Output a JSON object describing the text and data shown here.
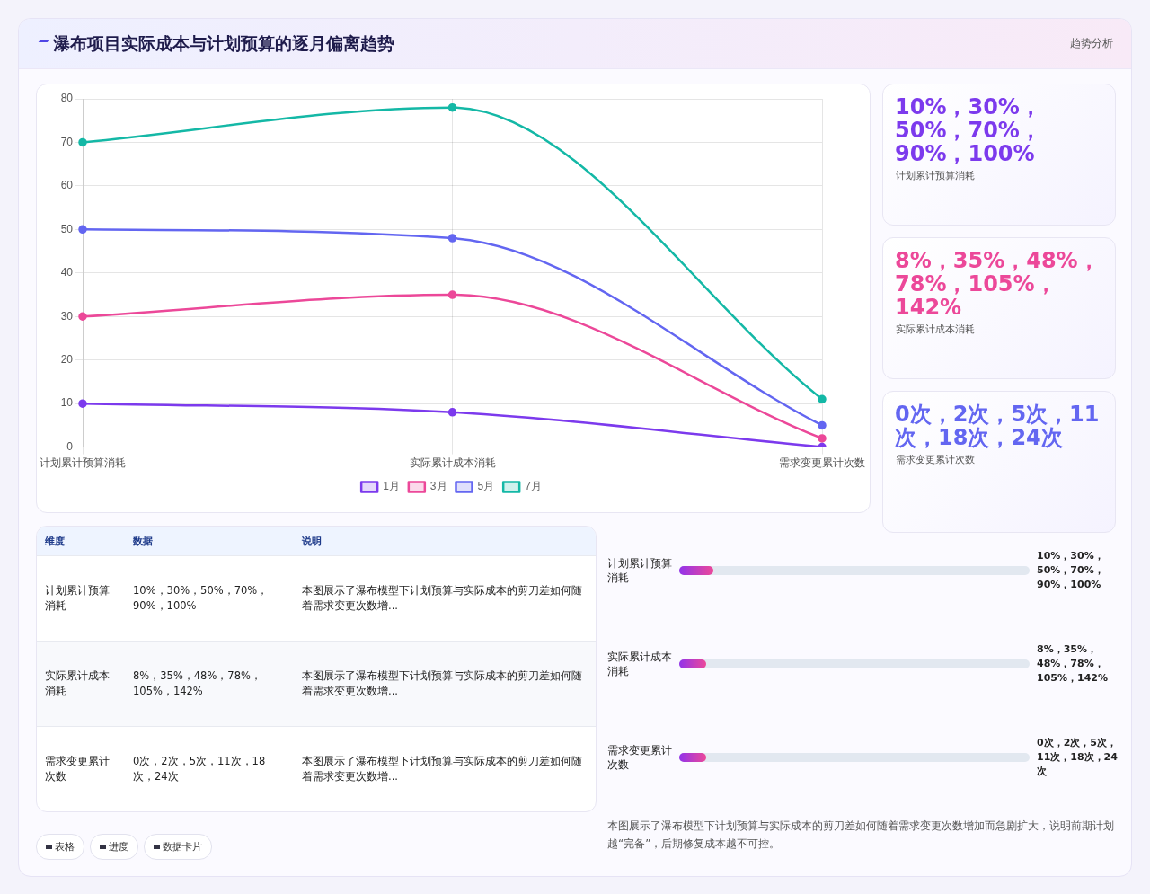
{
  "chart_data": [
    {
      "type": "other",
      "title": "瀑布项目实际成本与计划预算的逐月偏离趋势",
      "annotations": [
        "趋势分析"
      ]
    },
    {
      "type": "line",
      "categories": [
        "计划累计预算消耗",
        "实际累计成本消耗",
        "需求变更累计次数"
      ],
      "series": [
        {
          "name": "1月",
          "color": "#7c3aed",
          "values": [
            10,
            8,
            0
          ]
        },
        {
          "name": "3月",
          "color": "#ec4899",
          "values": [
            30,
            35,
            2
          ]
        },
        {
          "name": "5月",
          "color": "#6366f1",
          "values": [
            50,
            48,
            5
          ]
        },
        {
          "name": "7月",
          "color": "#14b8a6",
          "values": [
            70,
            78,
            11
          ]
        }
      ],
      "ylim": [
        0,
        80
      ],
      "yticks": [
        0,
        10,
        20,
        30,
        40,
        50,
        60,
        70,
        80
      ],
      "grid": true,
      "legend": "bottom",
      "marker": "circle"
    },
    {
      "type": "other",
      "colors": [
        "#7c3aed",
        "#ec4899",
        "#6366f1"
      ],
      "annotations": [
        "10%，30%，50%，70%，90%，100%",
        "计划累计预算消耗",
        "8%，35%，48%，78%，105%，142%",
        "实际累计成本消耗",
        "0次，2次，5次，11次，18次，24次",
        "需求变更累计次数"
      ]
    },
    {
      "type": "other",
      "annotations": [
        "维度",
        "数据",
        "说明",
        "计划累计预算消耗",
        "10%，30%，50%，70%，90%，100%",
        "本图展示了瀑布模型下计划预算与实际成本的剪刀差如何随着需求变更次数增...",
        "实际累计成本消耗",
        "8%，35%，48%，78%，105%，142%",
        "本图展示了瀑布模型下计划预算与实际成本的剪刀差如何随着需求变更次数增...",
        "需求变更累计次数",
        "0次，2次，5次，11次，18次，24次",
        "本图展示了瀑布模型下计划预算与实际成本的剪刀差如何随着需求变更次数增..."
      ]
    },
    {
      "type": "other",
      "annotations": [
        "计划累计预算消耗",
        "10%，30%，50%，70%，90%，100%",
        "实际累计成本消耗",
        "8%，35%，48%，78%，105%，142%",
        "需求变更累计次数",
        "0次，2次，5次，11次，18次，24次",
        "本图展示了瀑布模型下计划预算与实际成本的剪刀差如何随着需求变更次数增加而急剧扩大，说明前期计划越“完备”，后期修复成本越不可控。"
      ]
    },
    {
      "type": "other",
      "annotations": [
        "表格",
        "进度",
        "数据卡片"
      ]
    }
  ]
}
